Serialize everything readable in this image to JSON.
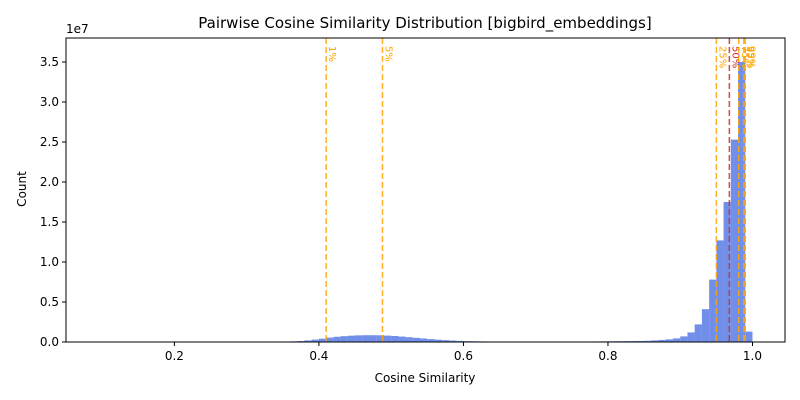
{
  "chart_data": {
    "type": "bar",
    "title": "Pairwise Cosine Similarity Distribution [bigbird_embeddings]",
    "xlabel": "Cosine Similarity",
    "ylabel": "Count",
    "y_offset_label": "1e7",
    "xlim": [
      0.05,
      1.045
    ],
    "ylim": [
      0,
      38000000
    ],
    "x_ticks": [
      0.2,
      0.4,
      0.6,
      0.8,
      1.0
    ],
    "x_tick_labels": [
      "0.2",
      "0.4",
      "0.6",
      "0.8",
      "1.0"
    ],
    "y_ticks": [
      0,
      5000000,
      10000000,
      15000000,
      20000000,
      25000000,
      30000000,
      35000000
    ],
    "y_tick_labels": [
      "0.0",
      "0.5",
      "1.0",
      "1.5",
      "2.0",
      "2.5",
      "3.0",
      "3.5"
    ],
    "bin_width": 0.01,
    "bins": [
      {
        "x": 0.34,
        "count": 30000
      },
      {
        "x": 0.35,
        "count": 50000
      },
      {
        "x": 0.36,
        "count": 80000
      },
      {
        "x": 0.37,
        "count": 120000
      },
      {
        "x": 0.38,
        "count": 200000
      },
      {
        "x": 0.39,
        "count": 300000
      },
      {
        "x": 0.4,
        "count": 420000
      },
      {
        "x": 0.41,
        "count": 550000
      },
      {
        "x": 0.42,
        "count": 650000
      },
      {
        "x": 0.43,
        "count": 730000
      },
      {
        "x": 0.44,
        "count": 790000
      },
      {
        "x": 0.45,
        "count": 830000
      },
      {
        "x": 0.46,
        "count": 850000
      },
      {
        "x": 0.47,
        "count": 850000
      },
      {
        "x": 0.48,
        "count": 840000
      },
      {
        "x": 0.49,
        "count": 800000
      },
      {
        "x": 0.5,
        "count": 750000
      },
      {
        "x": 0.51,
        "count": 680000
      },
      {
        "x": 0.52,
        "count": 600000
      },
      {
        "x": 0.53,
        "count": 520000
      },
      {
        "x": 0.54,
        "count": 440000
      },
      {
        "x": 0.55,
        "count": 360000
      },
      {
        "x": 0.56,
        "count": 290000
      },
      {
        "x": 0.57,
        "count": 230000
      },
      {
        "x": 0.58,
        "count": 180000
      },
      {
        "x": 0.59,
        "count": 140000
      },
      {
        "x": 0.6,
        "count": 110000
      },
      {
        "x": 0.61,
        "count": 90000
      },
      {
        "x": 0.62,
        "count": 75000
      },
      {
        "x": 0.63,
        "count": 65000
      },
      {
        "x": 0.64,
        "count": 60000
      },
      {
        "x": 0.65,
        "count": 55000
      },
      {
        "x": 0.66,
        "count": 50000
      },
      {
        "x": 0.67,
        "count": 45000
      },
      {
        "x": 0.68,
        "count": 40000
      },
      {
        "x": 0.69,
        "count": 35000
      },
      {
        "x": 0.7,
        "count": 30000
      },
      {
        "x": 0.75,
        "count": 40000
      },
      {
        "x": 0.76,
        "count": 50000
      },
      {
        "x": 0.77,
        "count": 60000
      },
      {
        "x": 0.78,
        "count": 70000
      },
      {
        "x": 0.79,
        "count": 80000
      },
      {
        "x": 0.8,
        "count": 90000
      },
      {
        "x": 0.81,
        "count": 100000
      },
      {
        "x": 0.82,
        "count": 110000
      },
      {
        "x": 0.83,
        "count": 120000
      },
      {
        "x": 0.84,
        "count": 130000
      },
      {
        "x": 0.85,
        "count": 150000
      },
      {
        "x": 0.86,
        "count": 200000
      },
      {
        "x": 0.87,
        "count": 260000
      },
      {
        "x": 0.88,
        "count": 330000
      },
      {
        "x": 0.89,
        "count": 450000
      },
      {
        "x": 0.9,
        "count": 700000
      },
      {
        "x": 0.91,
        "count": 1200000
      },
      {
        "x": 0.92,
        "count": 2200000
      },
      {
        "x": 0.93,
        "count": 4100000
      },
      {
        "x": 0.94,
        "count": 7800000
      },
      {
        "x": 0.95,
        "count": 12700000
      },
      {
        "x": 0.96,
        "count": 17500000
      },
      {
        "x": 0.97,
        "count": 25300000
      },
      {
        "x": 0.98,
        "count": 35000000
      },
      {
        "x": 0.99,
        "count": 1300000
      }
    ],
    "percentile_lines": [
      {
        "label": "1%",
        "x": 0.41,
        "color": "#ffa500"
      },
      {
        "label": "5%",
        "x": 0.488,
        "color": "#ffa500"
      },
      {
        "label": "25%",
        "x": 0.95,
        "color": "#ffa500"
      },
      {
        "label": "50%",
        "x": 0.968,
        "color": "#d62728"
      },
      {
        "label": "75%",
        "x": 0.981,
        "color": "#ffa500"
      },
      {
        "label": "95%",
        "x": 0.988,
        "color": "#ffa500"
      },
      {
        "label": "99%",
        "x": 0.99,
        "color": "#ffa500"
      }
    ],
    "bar_color": "#4169e1",
    "grid": false,
    "legend": "none"
  }
}
